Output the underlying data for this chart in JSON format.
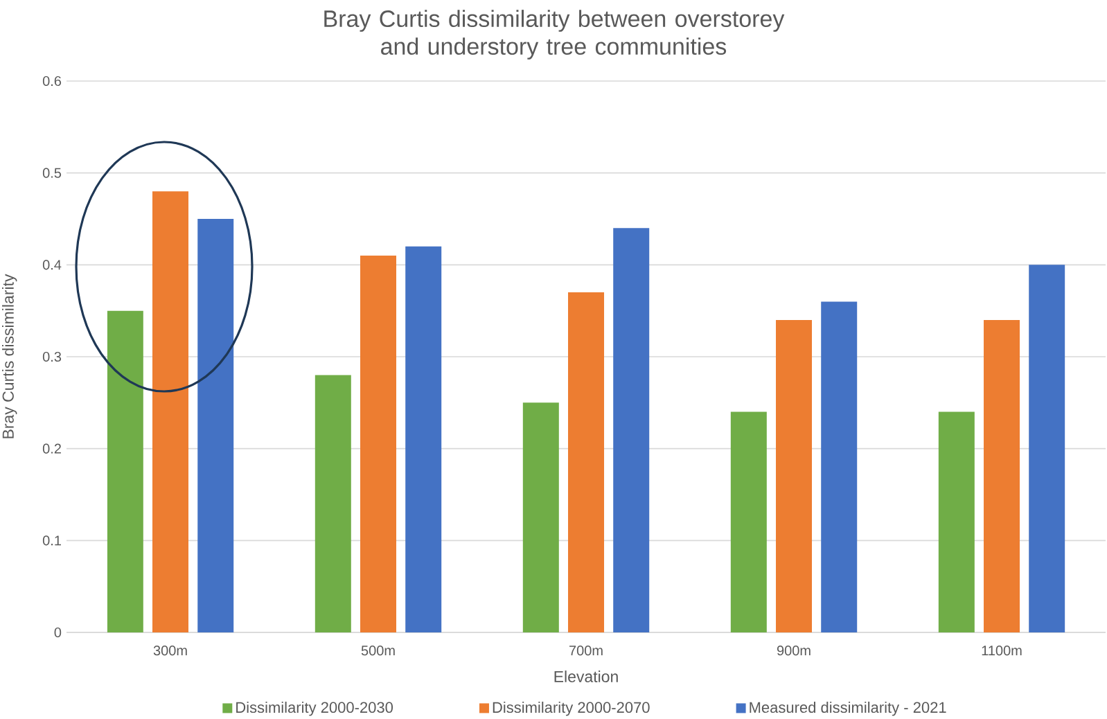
{
  "chart_data": {
    "type": "bar",
    "title": "Bray Curtis dissimilarity between overstorey and understory tree communities",
    "xlabel": "Elevation",
    "ylabel": "Bray Curtis dissimilarity",
    "categories": [
      "300m",
      "500m",
      "700m",
      "900m",
      "1100m"
    ],
    "series": [
      {
        "name": "Dissimilarity 2000-2030",
        "color": "#70ad47",
        "values": [
          0.35,
          0.28,
          0.25,
          0.24,
          0.24
        ]
      },
      {
        "name": "Dissimilarity 2000-2070",
        "color": "#ed7d31",
        "values": [
          0.48,
          0.41,
          0.37,
          0.34,
          0.34
        ]
      },
      {
        "name": "Measured dissimilarity - 2021",
        "color": "#4472c4",
        "values": [
          0.45,
          0.42,
          0.44,
          0.36,
          0.4
        ]
      }
    ],
    "ylim": [
      0,
      0.6
    ],
    "yticks": [
      0,
      0.1,
      0.2,
      0.3,
      0.4,
      0.5,
      0.6
    ],
    "grid": "y",
    "legend": "bottom"
  }
}
